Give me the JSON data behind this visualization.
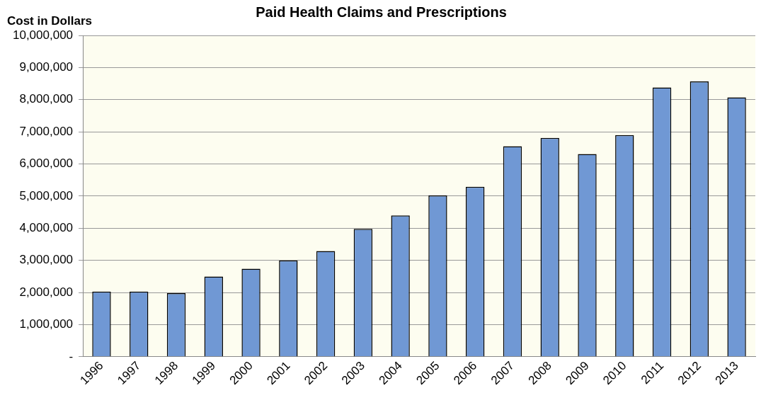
{
  "chart_data": {
    "type": "bar",
    "title": "Paid Health Claims and Prescriptions",
    "ylabel": "Cost in Dollars",
    "categories": [
      "1996",
      "1997",
      "1998",
      "1999",
      "2000",
      "2001",
      "2002",
      "2003",
      "2004",
      "2005",
      "2006",
      "2007",
      "2008",
      "2009",
      "2010",
      "2011",
      "2012",
      "2013"
    ],
    "values": [
      2030000,
      2030000,
      1980000,
      2500000,
      2740000,
      3000000,
      3290000,
      3980000,
      4400000,
      5020000,
      5290000,
      6550000,
      6810000,
      6310000,
      6900000,
      8380000,
      8570000,
      8070000
    ],
    "color": "#7098d4",
    "ylim": [
      0,
      10000000
    ],
    "yticks": [
      {
        "value": 0,
        "label": "-"
      },
      {
        "value": 1000000,
        "label": "1,000,000"
      },
      {
        "value": 2000000,
        "label": "2,000,000"
      },
      {
        "value": 3000000,
        "label": "3,000,000"
      },
      {
        "value": 4000000,
        "label": "4,000,000"
      },
      {
        "value": 5000000,
        "label": "5,000,000"
      },
      {
        "value": 6000000,
        "label": "6,000,000"
      },
      {
        "value": 7000000,
        "label": "7,000,000"
      },
      {
        "value": 8000000,
        "label": "8,000,000"
      },
      {
        "value": 9000000,
        "label": "9,000,000"
      },
      {
        "value": 10000000,
        "label": "10,000,000"
      }
    ],
    "grid": "y",
    "legend": false
  }
}
